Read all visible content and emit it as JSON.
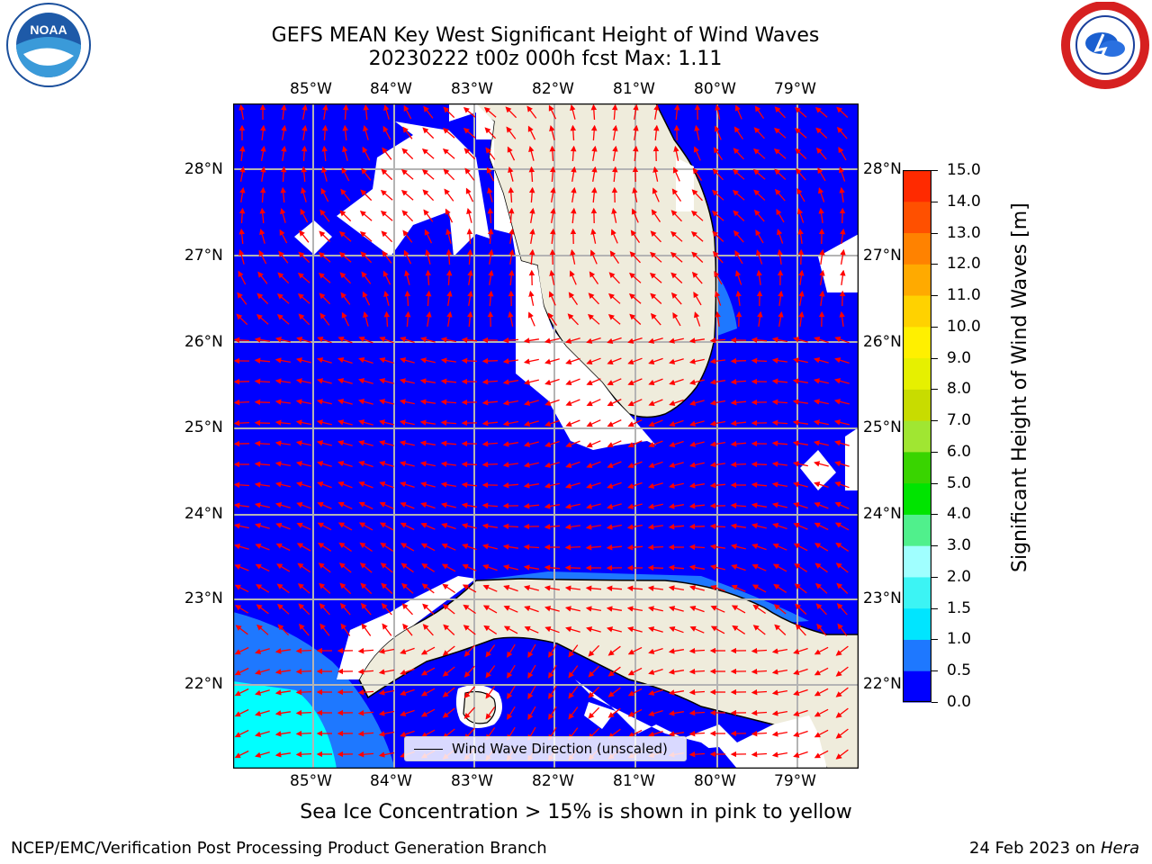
{
  "title_line1": "GEFS MEAN Key West Significant Height of Wind Waves",
  "title_line2": "20230222 t00z 000h fcst   Max: 1.11",
  "lon_labels": [
    "85°W",
    "84°W",
    "83°W",
    "82°W",
    "81°W",
    "80°W",
    "79°W"
  ],
  "lat_labels": [
    "28°N",
    "27°N",
    "26°N",
    "25°N",
    "24°N",
    "23°N",
    "22°N"
  ],
  "legend_label": "Wind Wave Direction (unscaled)",
  "colorbar": {
    "label": "Significant Height of Wind Waves [m]",
    "ticks": [
      "0.0",
      "0.5",
      "1.0",
      "1.5",
      "2.0",
      "3.0",
      "4.0",
      "5.0",
      "6.0",
      "7.0",
      "8.0",
      "9.0",
      "10.0",
      "11.0",
      "12.0",
      "13.0",
      "14.0",
      "15.0"
    ],
    "colors": [
      "#0000ff",
      "#1e78ff",
      "#00e5ff",
      "#3cf4f4",
      "#a0ffff",
      "#50f08c",
      "#00e400",
      "#39d400",
      "#a0e632",
      "#c8dc00",
      "#e6f000",
      "#fff000",
      "#ffd200",
      "#ffaa00",
      "#ff8200",
      "#ff5000",
      "#ff2a00",
      "#ff0000"
    ]
  },
  "note": "Sea Ice Concentration > 15% is shown in pink to yellow",
  "footer_left": "NCEP/EMC/Verification Post Processing Product Generation Branch",
  "footer_date": "24 Feb 2023 on",
  "footer_machine": "Hera",
  "logos": {
    "left": "NOAA",
    "right": "NATIONAL WEATHER SERVICE"
  },
  "colors": {
    "ocean": "#0000ff",
    "land": "#efecdc",
    "grid": "#b4b4b4",
    "arrow": "#ff0000"
  }
}
